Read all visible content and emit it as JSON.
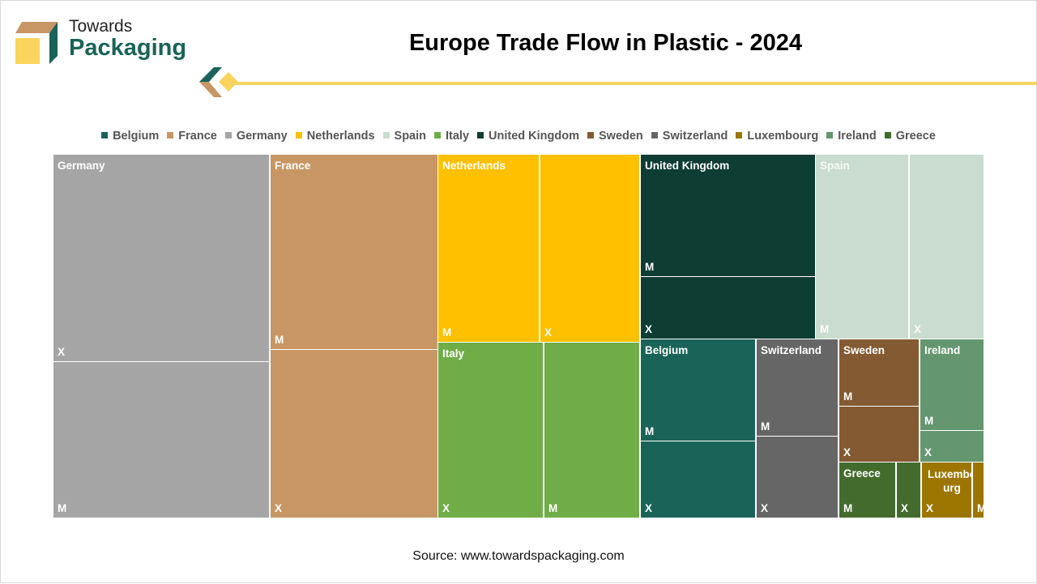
{
  "logo": {
    "line1": "Towards",
    "line2": "Packaging"
  },
  "title": "Europe Trade Flow in Plastic - 2024",
  "source": "Source: www.towardspackaging.com",
  "chart_data": {
    "type": "treemap",
    "title": "Europe Trade Flow in Plastic - 2024",
    "legend_position": "top",
    "legend": [
      "Belgium",
      "France",
      "Germany",
      "Netherlands",
      "Spain",
      "Italy",
      "United Kingdom",
      "Sweden",
      "Switzerland",
      "Luxembourg",
      "Ireland",
      "Greece"
    ],
    "colors": {
      "Belgium": "#1a6358",
      "France": "#c89664",
      "Germany": "#a5a5a5",
      "Netherlands": "#ffc000",
      "Spain": "#c9dccf",
      "Italy": "#70ad47",
      "United Kingdom": "#0e3d33",
      "Sweden": "#835a32",
      "Switzerland": "#666666",
      "Luxembourg": "#9c7600",
      "Ireland": "#649670",
      "Greece": "#436b2d"
    },
    "groups": [
      {
        "name": "Germany",
        "label": "Germany",
        "approx_share_pct": 23,
        "children": [
          {
            "label": "X"
          },
          {
            "label": "M"
          }
        ]
      },
      {
        "name": "France",
        "label": "France",
        "approx_share_pct": 18,
        "children": [
          {
            "label": "M"
          },
          {
            "label": "X"
          }
        ]
      },
      {
        "name": "Netherlands",
        "label": "Netherlands",
        "approx_share_pct": 11,
        "children": [
          {
            "label": "M"
          },
          {
            "label": "X"
          }
        ]
      },
      {
        "name": "Italy",
        "label": "Italy",
        "approx_share_pct": 10.5,
        "children": [
          {
            "label": "X"
          },
          {
            "label": "M"
          }
        ]
      },
      {
        "name": "United Kingdom",
        "label": "United Kingdom",
        "approx_share_pct": 9.5,
        "children": [
          {
            "label": "M"
          },
          {
            "label": "X"
          }
        ]
      },
      {
        "name": "Spain",
        "label": "Spain",
        "approx_share_pct": 9,
        "children": [
          {
            "label": "M"
          },
          {
            "label": "X"
          }
        ]
      },
      {
        "name": "Belgium",
        "label": "Belgium",
        "approx_share_pct": 6,
        "children": [
          {
            "label": "M"
          },
          {
            "label": "X"
          }
        ]
      },
      {
        "name": "Switzerland",
        "label": "Switzerland",
        "approx_share_pct": 4.3,
        "children": [
          {
            "label": "M"
          },
          {
            "label": "X"
          }
        ]
      },
      {
        "name": "Sweden",
        "label": "Sweden",
        "approx_share_pct": 2.9,
        "children": [
          {
            "label": "M"
          },
          {
            "label": "X"
          }
        ]
      },
      {
        "name": "Ireland",
        "label": "Ireland",
        "approx_share_pct": 2.3,
        "children": [
          {
            "label": "M"
          },
          {
            "label": "X"
          }
        ]
      },
      {
        "name": "Greece",
        "label": "Greece",
        "approx_share_pct": 1.3,
        "children": [
          {
            "label": "M"
          },
          {
            "label": "X"
          }
        ]
      },
      {
        "name": "Luxembourg",
        "label": "Luxembo urg",
        "approx_share_pct": 1,
        "children": [
          {
            "label": "X"
          },
          {
            "label": "M"
          }
        ]
      }
    ]
  }
}
